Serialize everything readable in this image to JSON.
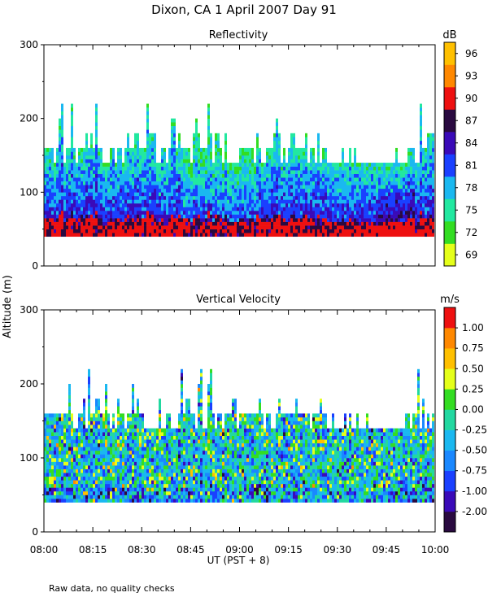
{
  "page": {
    "title": "Dixon, CA   1 April 2007   Day  91",
    "footnote": "Raw data, no quality checks",
    "ylabel": "Altitude  (m)",
    "xlabel": "UT  (PST + 8)"
  },
  "chart_data": [
    {
      "type": "heatmap",
      "title": "Reflectivity",
      "colorbar_unit": "dB",
      "xlim": [
        "08:00",
        "10:00"
      ],
      "ylim": [
        0,
        300
      ],
      "yticks": [
        0,
        100,
        200,
        300
      ],
      "data_altitude_range_m": [
        40,
        220
      ],
      "colorbar": {
        "ticks": [
          "69",
          "72",
          "75",
          "78",
          "81",
          "84",
          "87",
          "90",
          "93",
          "96"
        ],
        "colors": [
          "#e5ff1a",
          "#33dd22",
          "#22e8a0",
          "#1ab8f0",
          "#1a40ff",
          "#3a0ab8",
          "#2a0a40",
          "#ee1010",
          "#ff8800",
          "#ffc000"
        ]
      }
    },
    {
      "type": "heatmap",
      "title": "Vertical Velocity",
      "colorbar_unit": "m/s",
      "xlim": [
        "08:00",
        "10:00"
      ],
      "ylim": [
        0,
        300
      ],
      "yticks": [
        0,
        100,
        200,
        300
      ],
      "data_altitude_range_m": [
        40,
        220
      ],
      "colorbar": {
        "ticks": [
          "-2.00",
          "-1.00",
          "-0.75",
          "-0.50",
          "-0.25",
          "0.00",
          "0.25",
          "0.50",
          "0.75",
          "1.00"
        ],
        "colors": [
          "#2a0a40",
          "#3a0ab8",
          "#1a40ff",
          "#1a88ff",
          "#1ab8f0",
          "#22d8a0",
          "#33dd22",
          "#e5ff1a",
          "#ffc000",
          "#ff8800",
          "#ee1010"
        ]
      }
    }
  ],
  "xaxis": {
    "tick_labels": [
      "08:00",
      "08:15",
      "08:30",
      "08:45",
      "09:00",
      "09:15",
      "09:30",
      "09:45",
      "10:00"
    ]
  }
}
